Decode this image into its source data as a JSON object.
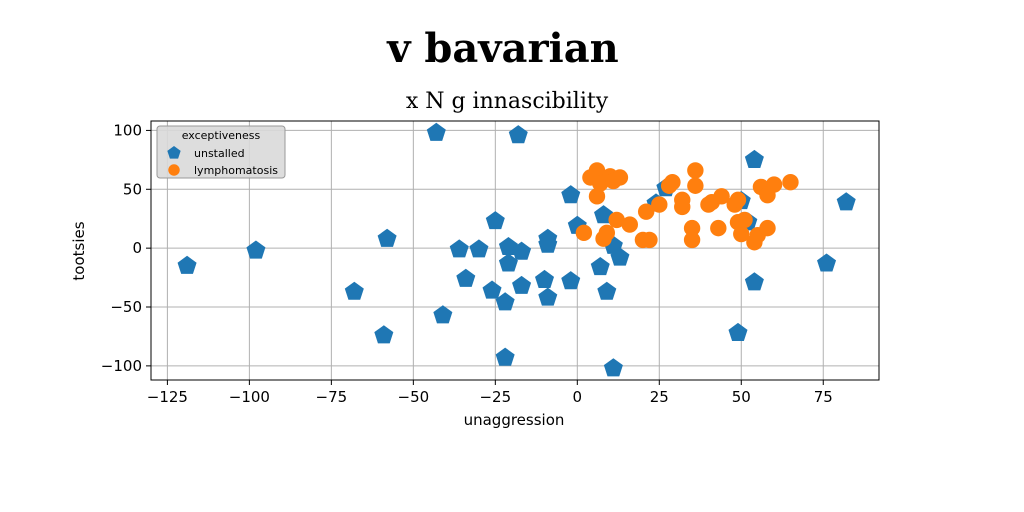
{
  "page": {
    "title": "v bavarian"
  },
  "chart_data": {
    "type": "scatter",
    "title": "x N g innascibility",
    "xlabel": "unaggression",
    "ylabel": "tootsies",
    "xlim": [
      -130,
      92
    ],
    "ylim": [
      -112,
      108
    ],
    "xticks": [
      -125,
      -100,
      -75,
      -50,
      -25,
      0,
      25,
      50,
      75
    ],
    "yticks": [
      -100,
      -50,
      0,
      50,
      100
    ],
    "xtick_labels": [
      "−125",
      "−100",
      "−75",
      "−50",
      "−25",
      "0",
      "25",
      "50",
      "75"
    ],
    "ytick_labels": [
      "−100",
      "−50",
      "0",
      "50",
      "100"
    ],
    "grid": true,
    "legend": {
      "title": "exceptiveness",
      "placement": "top-left"
    },
    "series": [
      {
        "name": "unstalled",
        "marker": "pentagon",
        "color": "#1f77b4",
        "points": [
          [
            -119,
            -15
          ],
          [
            -98,
            -2
          ],
          [
            -68,
            -37
          ],
          [
            -59,
            -74
          ],
          [
            -58,
            8
          ],
          [
            -43,
            98
          ],
          [
            -41,
            -57
          ],
          [
            -36,
            -1
          ],
          [
            -34,
            -26
          ],
          [
            -30,
            -1
          ],
          [
            -26,
            -36
          ],
          [
            -25,
            23
          ],
          [
            -22,
            -46
          ],
          [
            -21,
            1
          ],
          [
            -21,
            -13
          ],
          [
            -22,
            -93
          ],
          [
            -18,
            96
          ],
          [
            -17,
            -32
          ],
          [
            -17,
            -3
          ],
          [
            -10,
            -27
          ],
          [
            -9,
            8
          ],
          [
            -9,
            3
          ],
          [
            -9,
            -42
          ],
          [
            -2,
            45
          ],
          [
            -2,
            -28
          ],
          [
            0,
            19
          ],
          [
            7,
            -16
          ],
          [
            8,
            28
          ],
          [
            9,
            -37
          ],
          [
            11,
            2
          ],
          [
            13,
            -8
          ],
          [
            11,
            -102
          ],
          [
            27,
            51
          ],
          [
            24,
            38
          ],
          [
            49,
            -72
          ],
          [
            50,
            40
          ],
          [
            52,
            22
          ],
          [
            54,
            75
          ],
          [
            54,
            -29
          ],
          [
            76,
            -13
          ],
          [
            82,
            39
          ]
        ]
      },
      {
        "name": "lymphomatosis",
        "marker": "circle",
        "color": "#ff7f0e",
        "points": [
          [
            2,
            13
          ],
          [
            4,
            60
          ],
          [
            6,
            66
          ],
          [
            6,
            44
          ],
          [
            7,
            55
          ],
          [
            8,
            8
          ],
          [
            9,
            13
          ],
          [
            10,
            61
          ],
          [
            11,
            57
          ],
          [
            12,
            24
          ],
          [
            13,
            60
          ],
          [
            16,
            20
          ],
          [
            20,
            7
          ],
          [
            21,
            31
          ],
          [
            22,
            7
          ],
          [
            25,
            37
          ],
          [
            28,
            53
          ],
          [
            29,
            56
          ],
          [
            32,
            41
          ],
          [
            32,
            35
          ],
          [
            35,
            17
          ],
          [
            35,
            7
          ],
          [
            36,
            66
          ],
          [
            36,
            53
          ],
          [
            40,
            37
          ],
          [
            41,
            39
          ],
          [
            43,
            17
          ],
          [
            44,
            44
          ],
          [
            48,
            37
          ],
          [
            49,
            22
          ],
          [
            49,
            41
          ],
          [
            50,
            12
          ],
          [
            51,
            24
          ],
          [
            54,
            5
          ],
          [
            55,
            11
          ],
          [
            56,
            52
          ],
          [
            58,
            17
          ],
          [
            58,
            45
          ],
          [
            60,
            54
          ],
          [
            65,
            56
          ]
        ]
      }
    ]
  }
}
